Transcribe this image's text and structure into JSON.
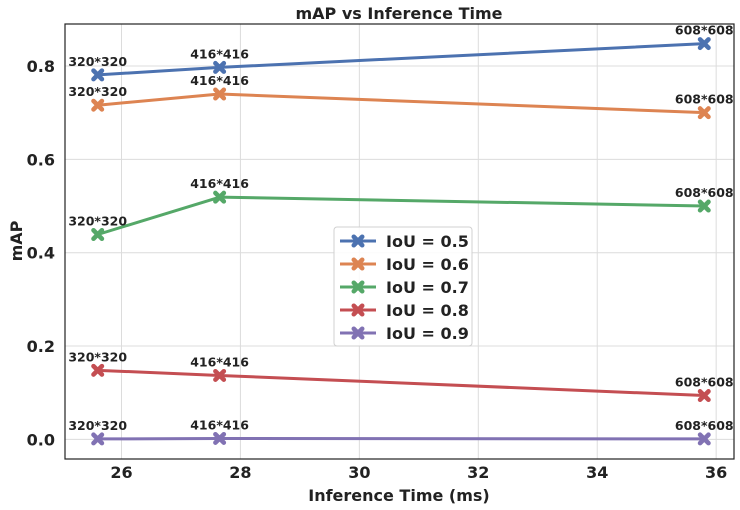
{
  "chart_data": {
    "type": "line",
    "title": "mAP vs Inference Time",
    "xlabel": "Inference Time (ms)",
    "ylabel": "mAP",
    "xlim": [
      25.05,
      36.3
    ],
    "ylim": [
      -0.042,
      0.89
    ],
    "xticks": [
      26,
      28,
      30,
      32,
      34,
      36
    ],
    "yticks": [
      0.0,
      0.2,
      0.4,
      0.6,
      0.8
    ],
    "grid": true,
    "legend_position": "center",
    "x": [
      25.6,
      27.65,
      35.8
    ],
    "point_labels": [
      "320*320",
      "416*416",
      "608*608"
    ],
    "series": [
      {
        "name": "IoU = 0.5",
        "color": "#4c72b0",
        "values": [
          0.781,
          0.797,
          0.848
        ]
      },
      {
        "name": "IoU = 0.6",
        "color": "#dd8452",
        "values": [
          0.716,
          0.74,
          0.7
        ]
      },
      {
        "name": "IoU = 0.7",
        "color": "#55a868",
        "values": [
          0.439,
          0.519,
          0.5
        ]
      },
      {
        "name": "IoU = 0.8",
        "color": "#c44e52",
        "values": [
          0.148,
          0.137,
          0.094
        ]
      },
      {
        "name": "IoU = 0.9",
        "color": "#8172b3",
        "values": [
          0.001,
          0.002,
          0.001
        ]
      }
    ]
  }
}
